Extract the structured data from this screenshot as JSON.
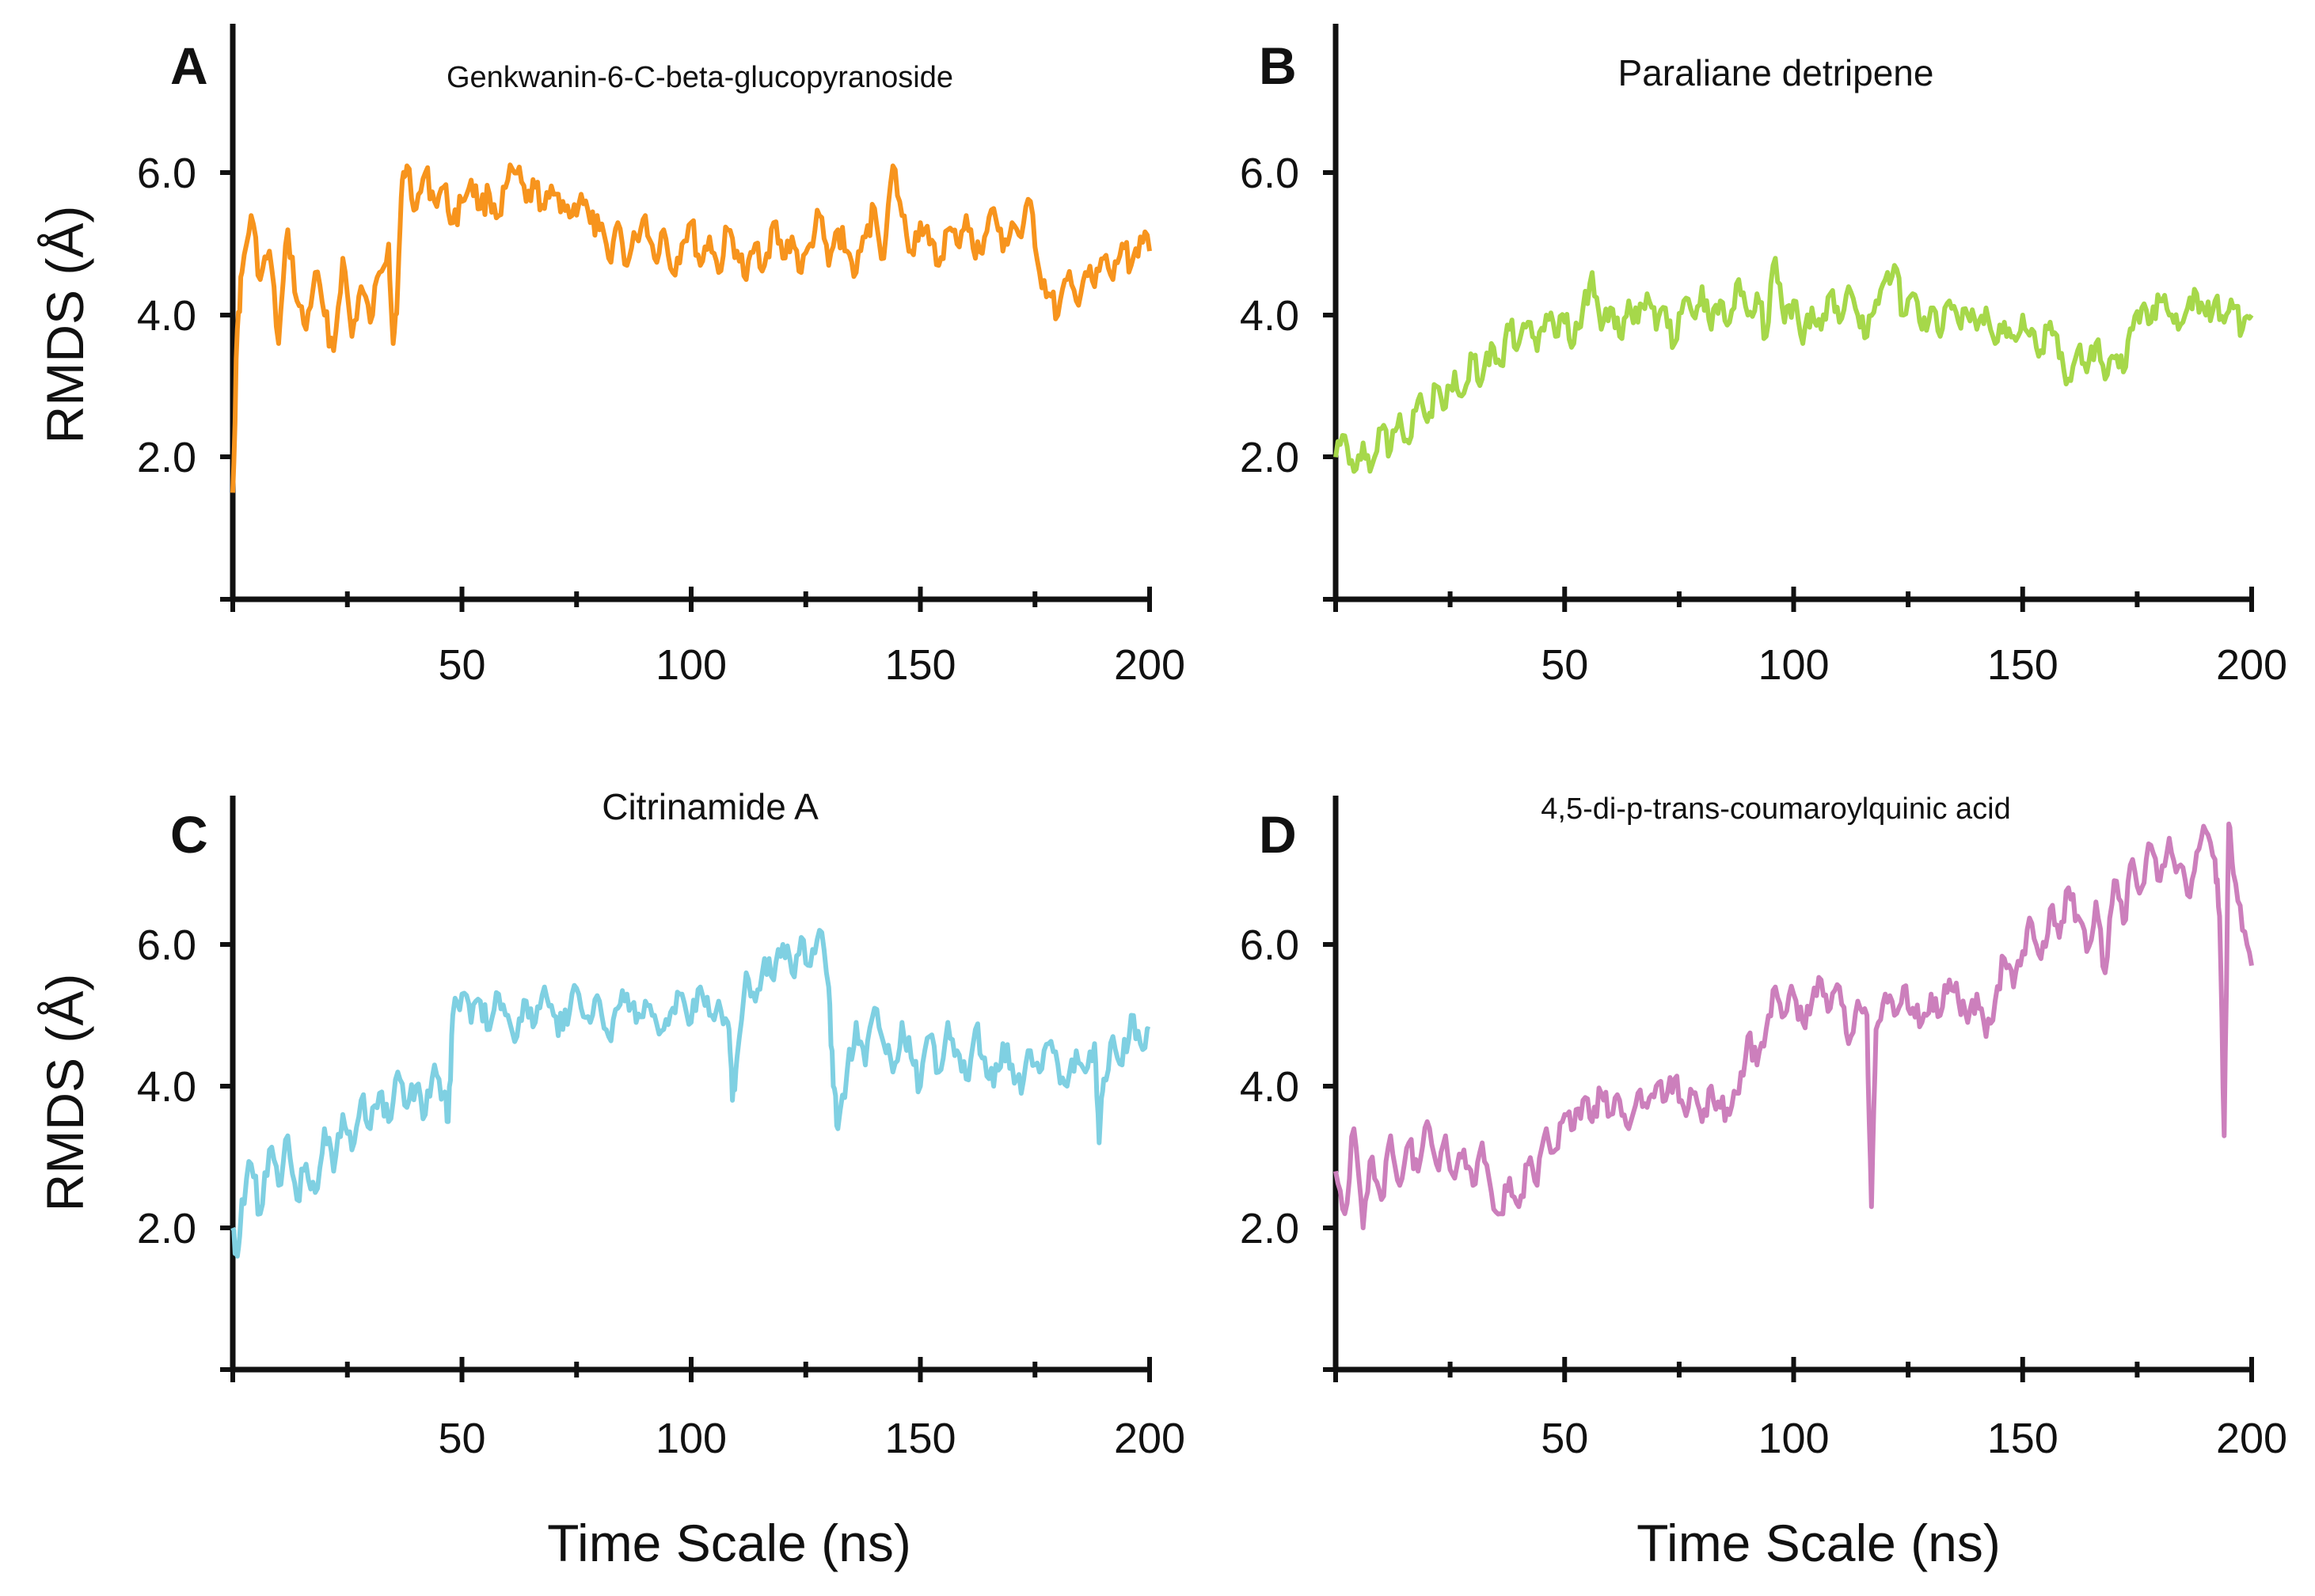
{
  "chart_data": [
    {
      "panel": "A",
      "type": "line",
      "title": "Genkwanin-6-C-beta-glucopyranoside",
      "xlabel": "",
      "ylabel": "RMDS (Å)",
      "xlim": [
        0,
        200
      ],
      "ylim": [
        0,
        8.0
      ],
      "x_ticks": [
        "50",
        "100",
        "150",
        "200"
      ],
      "y_ticks": [
        "2.0",
        "4.0",
        "6.0"
      ],
      "grid": false,
      "color": "#F7941D",
      "series": [
        {
          "name": "Genkwanin-6-C-beta-glucopyranoside",
          "x": [
            0,
            1,
            2,
            4,
            6,
            8,
            10,
            12,
            14,
            16,
            18,
            20,
            22,
            24,
            26,
            28,
            30,
            32,
            34,
            35,
            36,
            37,
            38,
            40,
            42,
            44,
            46,
            48,
            50,
            52,
            54,
            56,
            58,
            60,
            62,
            64,
            66,
            68,
            70,
            72,
            74,
            76,
            78,
            80,
            82,
            84,
            86,
            88,
            90,
            92,
            94,
            96,
            98,
            100,
            102,
            104,
            106,
            108,
            110,
            112,
            114,
            116,
            118,
            120,
            122,
            124,
            126,
            128,
            130,
            132,
            134,
            136,
            138,
            140,
            142,
            144,
            146,
            148,
            150,
            152,
            154,
            156,
            158,
            160,
            162,
            164,
            166,
            168,
            170,
            172,
            174,
            176,
            178,
            180,
            182,
            184,
            186,
            188,
            190,
            192,
            194,
            196,
            198,
            200
          ],
          "y": [
            1.5,
            3.8,
            4.6,
            5.4,
            4.5,
            4.9,
            3.6,
            5.2,
            4.2,
            3.8,
            4.6,
            4.0,
            3.5,
            4.8,
            3.7,
            4.4,
            3.9,
            4.6,
            5.0,
            3.6,
            4.4,
            5.9,
            6.1,
            5.5,
            6.0,
            5.6,
            5.8,
            5.3,
            5.6,
            5.9,
            5.5,
            5.7,
            5.4,
            5.9,
            6.0,
            5.6,
            5.8,
            5.5,
            5.7,
            5.6,
            5.4,
            5.7,
            5.3,
            5.2,
            4.8,
            5.3,
            4.7,
            5.1,
            5.4,
            4.8,
            5.2,
            4.6,
            5.0,
            5.3,
            4.7,
            5.1,
            4.6,
            5.2,
            4.9,
            4.5,
            5.0,
            4.7,
            5.3,
            4.8,
            5.1,
            4.6,
            5.0,
            5.4,
            4.7,
            5.2,
            4.9,
            4.6,
            5.1,
            5.5,
            4.8,
            6.1,
            5.4,
            4.9,
            5.3,
            5.0,
            4.7,
            5.2,
            5.0,
            5.4,
            4.8,
            5.1,
            5.5,
            4.9,
            5.3,
            5.1,
            5.6,
            4.6,
            4.3,
            4.0,
            4.5,
            4.2,
            4.6,
            4.4,
            4.8,
            4.5,
            5.0,
            4.7,
            5.1,
            4.9
          ]
        }
      ]
    },
    {
      "panel": "B",
      "type": "line",
      "title": "Paraliane detripene",
      "xlabel": "",
      "ylabel": "",
      "xlim": [
        0,
        200
      ],
      "ylim": [
        0,
        8.0
      ],
      "x_ticks": [
        "50",
        "100",
        "150",
        "200"
      ],
      "y_ticks": [
        "2.0",
        "4.0",
        "6.0"
      ],
      "grid": false,
      "color": "#A6D84A",
      "series": [
        {
          "name": "Paraliane detripene",
          "x": [
            0,
            2,
            4,
            6,
            8,
            10,
            12,
            14,
            16,
            18,
            20,
            22,
            24,
            26,
            28,
            30,
            32,
            34,
            36,
            38,
            40,
            42,
            44,
            46,
            48,
            50,
            52,
            54,
            56,
            58,
            60,
            62,
            64,
            66,
            68,
            70,
            72,
            74,
            76,
            78,
            80,
            82,
            84,
            86,
            88,
            90,
            92,
            94,
            96,
            98,
            100,
            102,
            104,
            106,
            108,
            110,
            112,
            114,
            116,
            118,
            120,
            122,
            124,
            126,
            128,
            130,
            132,
            134,
            136,
            138,
            140,
            142,
            144,
            146,
            148,
            150,
            152,
            154,
            156,
            158,
            160,
            162,
            164,
            166,
            168,
            170,
            172,
            174,
            176,
            178,
            180,
            182,
            184,
            186,
            188,
            190,
            192,
            194,
            196,
            198,
            200
          ],
          "y": [
            2.0,
            2.3,
            1.8,
            2.2,
            1.9,
            2.4,
            2.1,
            2.6,
            2.2,
            2.8,
            2.5,
            3.0,
            2.7,
            3.2,
            2.9,
            3.4,
            3.1,
            3.6,
            3.3,
            3.8,
            3.6,
            3.9,
            3.5,
            4.0,
            3.7,
            3.9,
            3.6,
            4.1,
            4.6,
            3.8,
            4.1,
            3.7,
            4.2,
            3.9,
            4.3,
            3.8,
            4.1,
            3.6,
            4.2,
            4.0,
            4.4,
            3.8,
            4.2,
            3.9,
            4.5,
            4.0,
            4.3,
            3.7,
            4.8,
            3.9,
            4.2,
            3.6,
            4.1,
            3.8,
            4.3,
            3.9,
            4.4,
            4.0,
            3.7,
            4.2,
            4.5,
            4.7,
            4.0,
            4.3,
            3.8,
            4.1,
            3.7,
            4.2,
            3.9,
            4.0,
            3.8,
            4.1,
            3.6,
            3.9,
            3.7,
            4.0,
            3.8,
            3.5,
            3.9,
            3.4,
            3.1,
            3.5,
            3.2,
            3.6,
            3.1,
            3.4,
            3.2,
            3.8,
            4.1,
            3.9,
            4.2,
            4.0,
            3.8,
            4.1,
            4.3,
            4.0,
            4.2,
            3.9,
            4.1,
            3.8,
            4.0
          ]
        }
      ]
    },
    {
      "panel": "C",
      "type": "line",
      "title": "Citrinamide A",
      "xlabel": "Time Scale (ns)",
      "ylabel": "RMDS (Å)",
      "xlim": [
        0,
        200
      ],
      "ylim": [
        0,
        8.0
      ],
      "x_ticks": [
        "50",
        "100",
        "150",
        "200"
      ],
      "y_ticks": [
        "2.0",
        "4.0",
        "6.0"
      ],
      "grid": false,
      "color": "#7FD0E2",
      "series": [
        {
          "name": "Citrinamide A",
          "x": [
            0,
            1,
            2,
            4,
            6,
            8,
            10,
            12,
            14,
            16,
            18,
            20,
            22,
            24,
            26,
            28,
            30,
            32,
            34,
            36,
            38,
            40,
            42,
            44,
            46,
            47,
            48,
            50,
            52,
            54,
            56,
            58,
            60,
            62,
            64,
            66,
            68,
            70,
            72,
            74,
            76,
            78,
            80,
            82,
            84,
            86,
            88,
            90,
            92,
            94,
            96,
            98,
            100,
            102,
            104,
            106,
            108,
            109,
            110,
            112,
            114,
            116,
            118,
            120,
            122,
            124,
            126,
            128,
            130,
            131,
            132,
            134,
            136,
            138,
            140,
            142,
            144,
            146,
            148,
            150,
            152,
            154,
            156,
            158,
            160,
            162,
            164,
            166,
            168,
            170,
            172,
            174,
            176,
            178,
            180,
            182,
            184,
            186,
            188,
            189,
            190,
            192,
            194,
            196,
            198,
            200
          ],
          "y": [
            2.0,
            1.6,
            2.4,
            2.9,
            2.2,
            3.1,
            2.6,
            3.3,
            2.4,
            2.9,
            2.5,
            3.4,
            2.8,
            3.6,
            3.1,
            3.8,
            3.4,
            3.9,
            3.5,
            4.2,
            3.7,
            4.0,
            3.6,
            4.3,
            3.9,
            3.5,
            5.0,
            5.3,
            4.9,
            5.2,
            4.8,
            5.3,
            5.0,
            4.7,
            5.2,
            4.9,
            5.4,
            5.0,
            4.8,
            5.3,
            5.1,
            4.9,
            5.2,
            4.7,
            5.1,
            5.3,
            4.9,
            5.2,
            5.0,
            4.8,
            5.1,
            5.3,
            4.9,
            5.4,
            5.0,
            5.2,
            4.9,
            3.8,
            4.4,
            5.6,
            5.2,
            5.8,
            5.5,
            6.0,
            5.6,
            6.1,
            5.7,
            6.2,
            5.4,
            4.0,
            3.4,
            4.2,
            4.9,
            4.3,
            5.1,
            4.6,
            4.2,
            4.9,
            4.4,
            4.0,
            4.7,
            4.2,
            4.9,
            4.5,
            4.1,
            4.8,
            4.4,
            4.0,
            4.6,
            4.3,
            3.9,
            4.5,
            4.2,
            4.6,
            4.3,
            4.0,
            4.5,
            4.2,
            4.6,
            3.2,
            4.1,
            4.7,
            4.3,
            5.0,
            4.6,
            4.8
          ]
        }
      ]
    },
    {
      "panel": "D",
      "type": "line",
      "title": "4,5-di-p-trans-coumaroylquinic acid",
      "xlabel": "Time Scale (ns)",
      "ylabel": "",
      "xlim": [
        0,
        200
      ],
      "ylim": [
        0,
        8.0
      ],
      "x_ticks": [
        "50",
        "100",
        "150",
        "200"
      ],
      "y_ticks": [
        "2.0",
        "4.0",
        "6.0"
      ],
      "grid": false,
      "color": "#CC7FBC",
      "series": [
        {
          "name": "4,5-di-p-trans-coumaroylquinic acid",
          "x": [
            0,
            2,
            4,
            6,
            8,
            10,
            12,
            14,
            16,
            18,
            20,
            22,
            24,
            26,
            28,
            30,
            32,
            34,
            36,
            38,
            40,
            42,
            44,
            46,
            48,
            50,
            52,
            54,
            56,
            58,
            60,
            62,
            64,
            66,
            68,
            70,
            72,
            74,
            76,
            78,
            80,
            82,
            84,
            86,
            88,
            90,
            92,
            94,
            96,
            98,
            100,
            102,
            104,
            106,
            108,
            110,
            112,
            114,
            116,
            117,
            118,
            120,
            122,
            124,
            126,
            128,
            130,
            132,
            134,
            136,
            138,
            140,
            142,
            144,
            146,
            148,
            150,
            152,
            154,
            156,
            158,
            160,
            162,
            164,
            166,
            168,
            170,
            172,
            174,
            176,
            178,
            180,
            182,
            184,
            186,
            188,
            190,
            192,
            193,
            194,
            195,
            196,
            198,
            200
          ],
          "y": [
            2.8,
            2.2,
            3.4,
            2.0,
            3.0,
            2.4,
            3.3,
            2.6,
            3.2,
            2.8,
            3.5,
            2.9,
            3.3,
            2.7,
            3.1,
            2.6,
            3.2,
            2.5,
            2.2,
            2.7,
            2.3,
            2.9,
            2.6,
            3.4,
            3.1,
            3.6,
            3.4,
            3.8,
            3.5,
            3.9,
            3.6,
            3.8,
            3.4,
            3.9,
            3.7,
            4.0,
            3.8,
            4.1,
            3.7,
            3.9,
            3.5,
            4.0,
            3.7,
            3.6,
            3.9,
            4.7,
            4.3,
            4.8,
            5.4,
            5.0,
            5.3,
            4.9,
            5.2,
            5.5,
            5.1,
            5.4,
            4.6,
            5.2,
            5.0,
            2.3,
            4.8,
            5.3,
            5.0,
            5.4,
            5.1,
            4.9,
            5.3,
            5.0,
            5.5,
            5.2,
            4.9,
            5.3,
            4.7,
            5.2,
            5.8,
            5.4,
            5.9,
            6.3,
            5.8,
            6.5,
            6.1,
            6.8,
            6.4,
            5.9,
            6.6,
            5.6,
            6.9,
            6.3,
            7.2,
            6.8,
            7.4,
            6.9,
            7.5,
            7.1,
            6.7,
            7.3,
            7.6,
            7.2,
            6.4,
            3.3,
            7.7,
            7.0,
            6.2,
            5.7
          ]
        }
      ]
    }
  ]
}
